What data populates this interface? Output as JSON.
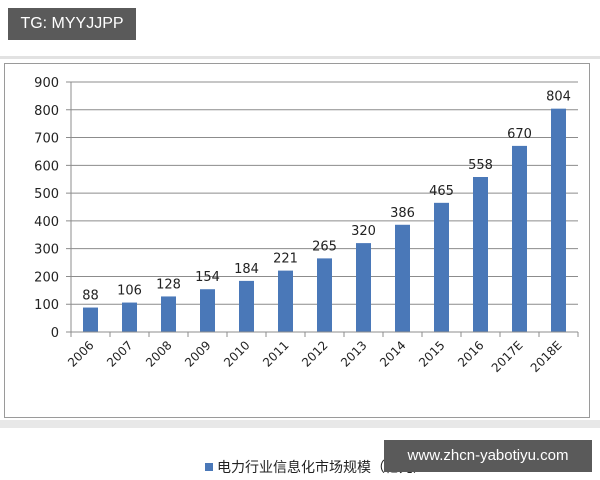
{
  "watermarks": {
    "top": "TG: MYYJJPP",
    "bottom": "www.zhcn-yabotiyu.com"
  },
  "colors": {
    "bar": "#4a78b8",
    "gridline": "#8c8c8c",
    "watermark_bg": "#5a5a5a"
  },
  "legend": {
    "label": "电力行业信息化市场规模（亿元）"
  },
  "chart_data": {
    "type": "bar",
    "title": "",
    "xlabel": "",
    "ylabel": "",
    "categories": [
      "2006",
      "2007",
      "2008",
      "2009",
      "2010",
      "2011",
      "2012",
      "2013",
      "2014",
      "2015",
      "2016",
      "2017E",
      "2018E"
    ],
    "series": [
      {
        "name": "电力行业信息化市场规模（亿元）",
        "values": [
          88,
          106,
          128,
          154,
          184,
          221,
          265,
          320,
          386,
          465,
          558,
          670,
          804
        ]
      }
    ],
    "data_labels": [
      "88",
      "106",
      "128",
      "154",
      "184",
      "221",
      "265",
      "320",
      "386",
      "465",
      "558",
      "670",
      "804"
    ],
    "ylim": [
      0,
      900
    ],
    "yticks": [
      0,
      100,
      200,
      300,
      400,
      500,
      600,
      700,
      800,
      900
    ],
    "grid": true,
    "legend_position": "bottom",
    "x_tick_rotation": -45
  }
}
